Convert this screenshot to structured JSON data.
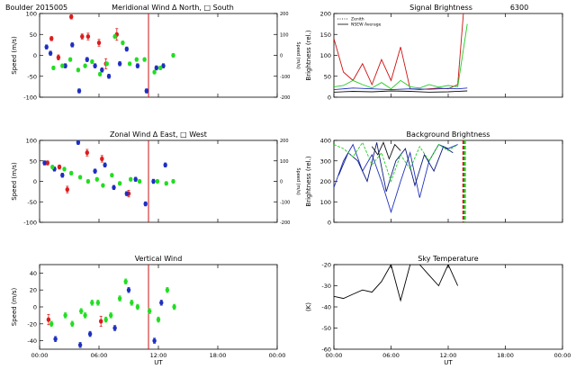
{
  "chart_data": [
    {
      "id": "meridional",
      "type": "scatter",
      "title_left": "Boulder  2015005",
      "title": "Meridional Wind  Δ North, □ South",
      "xlabel": "",
      "ylabel": "Speed (m/s)",
      "ylabel_right": "Speed (m/s)",
      "xlim": [
        0,
        24
      ],
      "ylim": [
        -100,
        100
      ],
      "yticks": [
        -100,
        -50,
        0,
        50,
        100
      ],
      "yticks_right": [
        -200,
        -100,
        0,
        100,
        200
      ],
      "vline_x": 11.0,
      "series": [
        {
          "name": "North",
          "color": "#dd1c1c",
          "x": [
            1.2,
            1.9,
            3.2,
            4.3,
            4.9,
            6.0,
            6.7,
            7.8
          ],
          "y": [
            40,
            -5,
            92,
            45,
            45,
            30,
            -20,
            50
          ],
          "err": [
            5,
            6,
            5,
            6,
            8,
            8,
            12,
            14
          ]
        },
        {
          "name": "South",
          "color": "#1f2fbf",
          "x": [
            0.7,
            1.1,
            2.6,
            3.3,
            4.0,
            4.8,
            5.6,
            6.3,
            7.0,
            8.1,
            8.8,
            9.9,
            10.8,
            11.8,
            12.5
          ],
          "y": [
            20,
            5,
            -25,
            25,
            -85,
            -10,
            -25,
            -35,
            -50,
            -20,
            15,
            -25,
            -85,
            -30,
            -25
          ],
          "err": [
            5,
            5,
            5,
            5,
            5,
            5,
            5,
            5,
            5,
            5,
            5,
            5,
            5,
            5,
            5
          ]
        },
        {
          "name": "Zenith",
          "color": "#22dd22",
          "x": [
            1.4,
            2.3,
            3.1,
            3.9,
            4.6,
            5.3,
            6.1,
            6.8,
            7.6,
            8.4,
            9.1,
            9.8,
            10.6,
            11.6,
            12.2,
            13.5
          ],
          "y": [
            -30,
            -25,
            -10,
            -35,
            -25,
            -15,
            -45,
            -20,
            45,
            30,
            -20,
            -10,
            -10,
            -40,
            -30,
            0
          ],
          "err": [
            4,
            4,
            4,
            4,
            4,
            4,
            4,
            4,
            4,
            4,
            4,
            4,
            4,
            4,
            4,
            4
          ]
        }
      ]
    },
    {
      "id": "signal",
      "type": "line",
      "title": "Signal Brightness",
      "title_right": "6300",
      "xlabel": "",
      "ylabel": "Brightness (rel.)",
      "xlim": [
        0,
        24
      ],
      "ylim": [
        0,
        200
      ],
      "yticks": [
        0,
        50,
        100,
        150,
        200
      ],
      "legend": [
        {
          "label": "Zenith",
          "style": "dotted"
        },
        {
          "label": "NSEW Average",
          "style": "solid"
        }
      ],
      "series": [
        {
          "name": "North",
          "color": "#cc1111",
          "x": [
            0,
            1,
            2,
            3,
            4,
            5,
            6,
            7,
            8,
            9,
            10,
            11,
            12,
            13,
            13.6
          ],
          "y": [
            140,
            60,
            40,
            80,
            30,
            90,
            40,
            120,
            20,
            18,
            20,
            22,
            20,
            30,
            200
          ]
        },
        {
          "name": "Zenith",
          "color": "#22cc22",
          "x": [
            0,
            1,
            2,
            3,
            4,
            5,
            6,
            7,
            8,
            9,
            10,
            11,
            12,
            13,
            14
          ],
          "y": [
            25,
            28,
            40,
            30,
            22,
            35,
            20,
            40,
            25,
            22,
            30,
            24,
            28,
            25,
            175
          ]
        },
        {
          "name": "NSEW Average",
          "color": "#1f2fbf",
          "x": [
            0,
            2,
            4,
            6,
            8,
            10,
            12,
            13,
            14
          ],
          "y": [
            18,
            22,
            20,
            18,
            20,
            19,
            21,
            20,
            22
          ]
        },
        {
          "name": "South",
          "color": "#111111",
          "x": [
            0,
            2,
            4,
            6,
            8,
            10,
            12,
            14
          ],
          "y": [
            12,
            14,
            13,
            15,
            14,
            12,
            13,
            15
          ]
        }
      ]
    },
    {
      "id": "zonal",
      "type": "scatter",
      "title": "Zonal Wind     Δ East, □ West",
      "xlabel": "",
      "ylabel": "Speed (m/s)",
      "ylabel_right": "Speed (m/s)",
      "xlim": [
        0,
        24
      ],
      "ylim": [
        -100,
        100
      ],
      "yticks": [
        -100,
        -50,
        0,
        50,
        100
      ],
      "yticks_right": [
        -200,
        -100,
        0,
        100,
        200
      ],
      "vline_x": 11.0,
      "series": [
        {
          "name": "East",
          "color": "#dd1c1c",
          "x": [
            0.8,
            2.0,
            2.8,
            4.8,
            6.3,
            9.0
          ],
          "y": [
            45,
            35,
            -20,
            70,
            55,
            -30
          ],
          "err": [
            5,
            5,
            8,
            8,
            8,
            8
          ]
        },
        {
          "name": "West",
          "color": "#1f2fbf",
          "x": [
            0.5,
            1.5,
            2.3,
            3.9,
            5.6,
            6.6,
            7.5,
            8.8,
            9.7,
            10.7,
            11.5,
            12.7
          ],
          "y": [
            45,
            30,
            15,
            95,
            25,
            40,
            -15,
            -30,
            5,
            -55,
            0,
            40
          ],
          "err": [
            5,
            5,
            5,
            5,
            5,
            5,
            5,
            5,
            5,
            5,
            5,
            5
          ]
        },
        {
          "name": "Zenith",
          "color": "#22dd22",
          "x": [
            1.3,
            2.5,
            3.2,
            4.1,
            4.9,
            5.8,
            6.4,
            7.3,
            8.1,
            9.2,
            10.1,
            11.9,
            12.8,
            13.5
          ],
          "y": [
            35,
            30,
            20,
            10,
            0,
            5,
            -10,
            15,
            -5,
            5,
            0,
            0,
            -5,
            0
          ],
          "err": [
            4,
            4,
            4,
            4,
            4,
            4,
            4,
            4,
            4,
            4,
            4,
            4,
            4,
            4
          ]
        }
      ]
    },
    {
      "id": "background",
      "type": "line",
      "title": "Background Brightness",
      "xlabel": "",
      "ylabel": "Brightness (rel.)",
      "xlim": [
        0,
        24
      ],
      "ylim": [
        0,
        400
      ],
      "yticks": [
        0,
        100,
        200,
        300,
        400
      ],
      "vlines": [
        {
          "x": 13.6,
          "color": "#cc1111"
        },
        {
          "x": 13.75,
          "color": "#22cc22"
        }
      ],
      "series": [
        {
          "name": "West",
          "color": "#1f2fbf",
          "x": [
            0,
            1,
            2,
            3,
            4,
            5,
            6,
            7,
            8,
            9,
            10,
            11,
            12,
            13
          ],
          "y": [
            170,
            300,
            380,
            250,
            330,
            200,
            50,
            200,
            340,
            120,
            300,
            380,
            360,
            380
          ]
        },
        {
          "name": "South",
          "color": "#0a1a7a",
          "x": [
            0.5,
            1.5,
            2.5,
            3.5,
            4.5,
            5.5,
            6.5,
            7.5,
            8.5,
            9.5,
            10.5,
            11.5,
            12.5
          ],
          "y": [
            230,
            340,
            300,
            200,
            390,
            150,
            300,
            360,
            180,
            330,
            250,
            370,
            340
          ]
        },
        {
          "name": "Zenith",
          "color": "#22cc22",
          "x": [
            0,
            1,
            2,
            3,
            4,
            5,
            6,
            7,
            8,
            9,
            10,
            11,
            12,
            13
          ],
          "y": [
            380,
            360,
            320,
            390,
            280,
            340,
            200,
            330,
            260,
            370,
            300,
            380,
            350,
            380
          ]
        },
        {
          "name": "North",
          "color": "#111111",
          "x": [
            4,
            4.6,
            5.2,
            5.8,
            6.4,
            7.0
          ],
          "y": [
            370,
            330,
            390,
            310,
            380,
            350
          ]
        }
      ]
    },
    {
      "id": "vertical",
      "type": "scatter",
      "title": "Vertical Wind",
      "xlabel": "UT",
      "ylabel": "Speed (m/s)",
      "xlim": [
        0,
        24
      ],
      "ylim": [
        -50,
        50
      ],
      "yticks": [
        -40,
        -20,
        0,
        20,
        40
      ],
      "xticks": [
        "00:00",
        "06:00",
        "12:00",
        "18:00",
        "00:00"
      ],
      "vline_x": 11.0,
      "series": [
        {
          "name": "Red",
          "color": "#dd1c1c",
          "x": [
            0.9,
            6.2
          ],
          "y": [
            -15,
            -17
          ],
          "err": [
            6,
            6
          ]
        },
        {
          "name": "Blue",
          "color": "#1f2fbf",
          "x": [
            1.6,
            4.1,
            5.1,
            7.6,
            9.0,
            11.6,
            12.3
          ],
          "y": [
            -38,
            -45,
            -32,
            -25,
            20,
            -40,
            5
          ],
          "err": [
            3,
            3,
            3,
            3,
            3,
            3,
            3
          ]
        },
        {
          "name": "Green",
          "color": "#22dd22",
          "x": [
            1.2,
            2.6,
            3.3,
            4.2,
            4.6,
            5.3,
            5.9,
            6.7,
            7.2,
            8.1,
            8.7,
            9.3,
            9.9,
            11.1,
            12.0,
            12.9,
            13.6
          ],
          "y": [
            -20,
            -10,
            -20,
            -5,
            -10,
            5,
            5,
            -15,
            -10,
            10,
            30,
            5,
            0,
            -5,
            -15,
            20,
            0
          ],
          "err": [
            3,
            3,
            3,
            3,
            3,
            3,
            3,
            3,
            3,
            3,
            3,
            3,
            3,
            3,
            3,
            3,
            3
          ]
        }
      ]
    },
    {
      "id": "sky",
      "type": "line",
      "title": "Sky Temperature",
      "xlabel": "UT",
      "ylabel": "(K)",
      "xlim": [
        0,
        24
      ],
      "ylim": [
        -60,
        -20
      ],
      "yticks": [
        -60,
        -50,
        -40,
        -30,
        -20
      ],
      "xticks": [
        "00:00",
        "06:00",
        "12:00",
        "18:00",
        "00:00"
      ],
      "series": [
        {
          "name": "Sky",
          "color": "#000000",
          "x": [
            0,
            1,
            2,
            3,
            4,
            5,
            6,
            7,
            8,
            9,
            10,
            11,
            12,
            13
          ],
          "y": [
            -35,
            -36,
            -34,
            -32,
            -33,
            -28,
            -20,
            -37,
            -20,
            -20,
            -25,
            -30,
            -20,
            -30
          ]
        }
      ]
    }
  ]
}
